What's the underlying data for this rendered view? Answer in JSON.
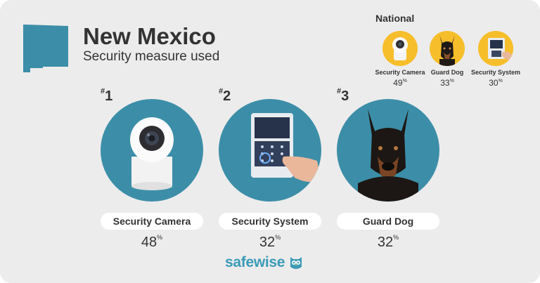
{
  "header": {
    "title": "New Mexico",
    "subtitle": "Security measure used"
  },
  "national": {
    "title": "National",
    "items": [
      {
        "label": "Security Camera",
        "value": "49",
        "unit": "%",
        "icon": "security-camera-icon"
      },
      {
        "label": "Guard Dog",
        "value": "33",
        "unit": "%",
        "icon": "guard-dog-icon"
      },
      {
        "label": "Security System",
        "value": "30",
        "unit": "%",
        "icon": "security-system-icon"
      }
    ]
  },
  "ranking": [
    {
      "rank_symbol": "#",
      "rank": "1",
      "label": "Security Camera",
      "value": "48",
      "unit": "%",
      "icon": "security-camera-icon"
    },
    {
      "rank_symbol": "#",
      "rank": "2",
      "label": "Security System",
      "value": "32",
      "unit": "%",
      "icon": "security-system-icon"
    },
    {
      "rank_symbol": "#",
      "rank": "3",
      "label": "Guard Dog",
      "value": "32",
      "unit": "%",
      "icon": "guard-dog-icon"
    }
  ],
  "brand": {
    "name": "safewise",
    "icon": "owl-icon"
  },
  "colors": {
    "teal": "#3c8ea8",
    "yellow": "#f7be2b",
    "brand": "#3b9bb7",
    "background": "#ececec",
    "state": "#3c8ea8"
  }
}
